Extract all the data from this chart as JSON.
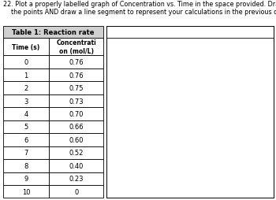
{
  "title_line1": "22. Plot a properly labelled graph of Concentration vs. Time in the space provided. Draw a curve to connect",
  "title_line2": "    the points AND draw a line segment to represent your calculations in the previous question.",
  "table_title": "Table 1: Reaction rate",
  "col1_header": "Time (s)",
  "col2_header": "Concentrati\non (mol/L)",
  "time": [
    0,
    1,
    2,
    3,
    4,
    5,
    6,
    7,
    8,
    9,
    10
  ],
  "concentration": [
    "0.76",
    "0.76",
    "0.75",
    "0.73",
    "0.70",
    "0.66",
    "0.60",
    "0.52",
    "0.40",
    "0.23",
    "0"
  ],
  "bg_color": "#ffffff",
  "table_header_bg": "#d0d0d0",
  "font_size": 6.0,
  "title_font_size": 5.8
}
